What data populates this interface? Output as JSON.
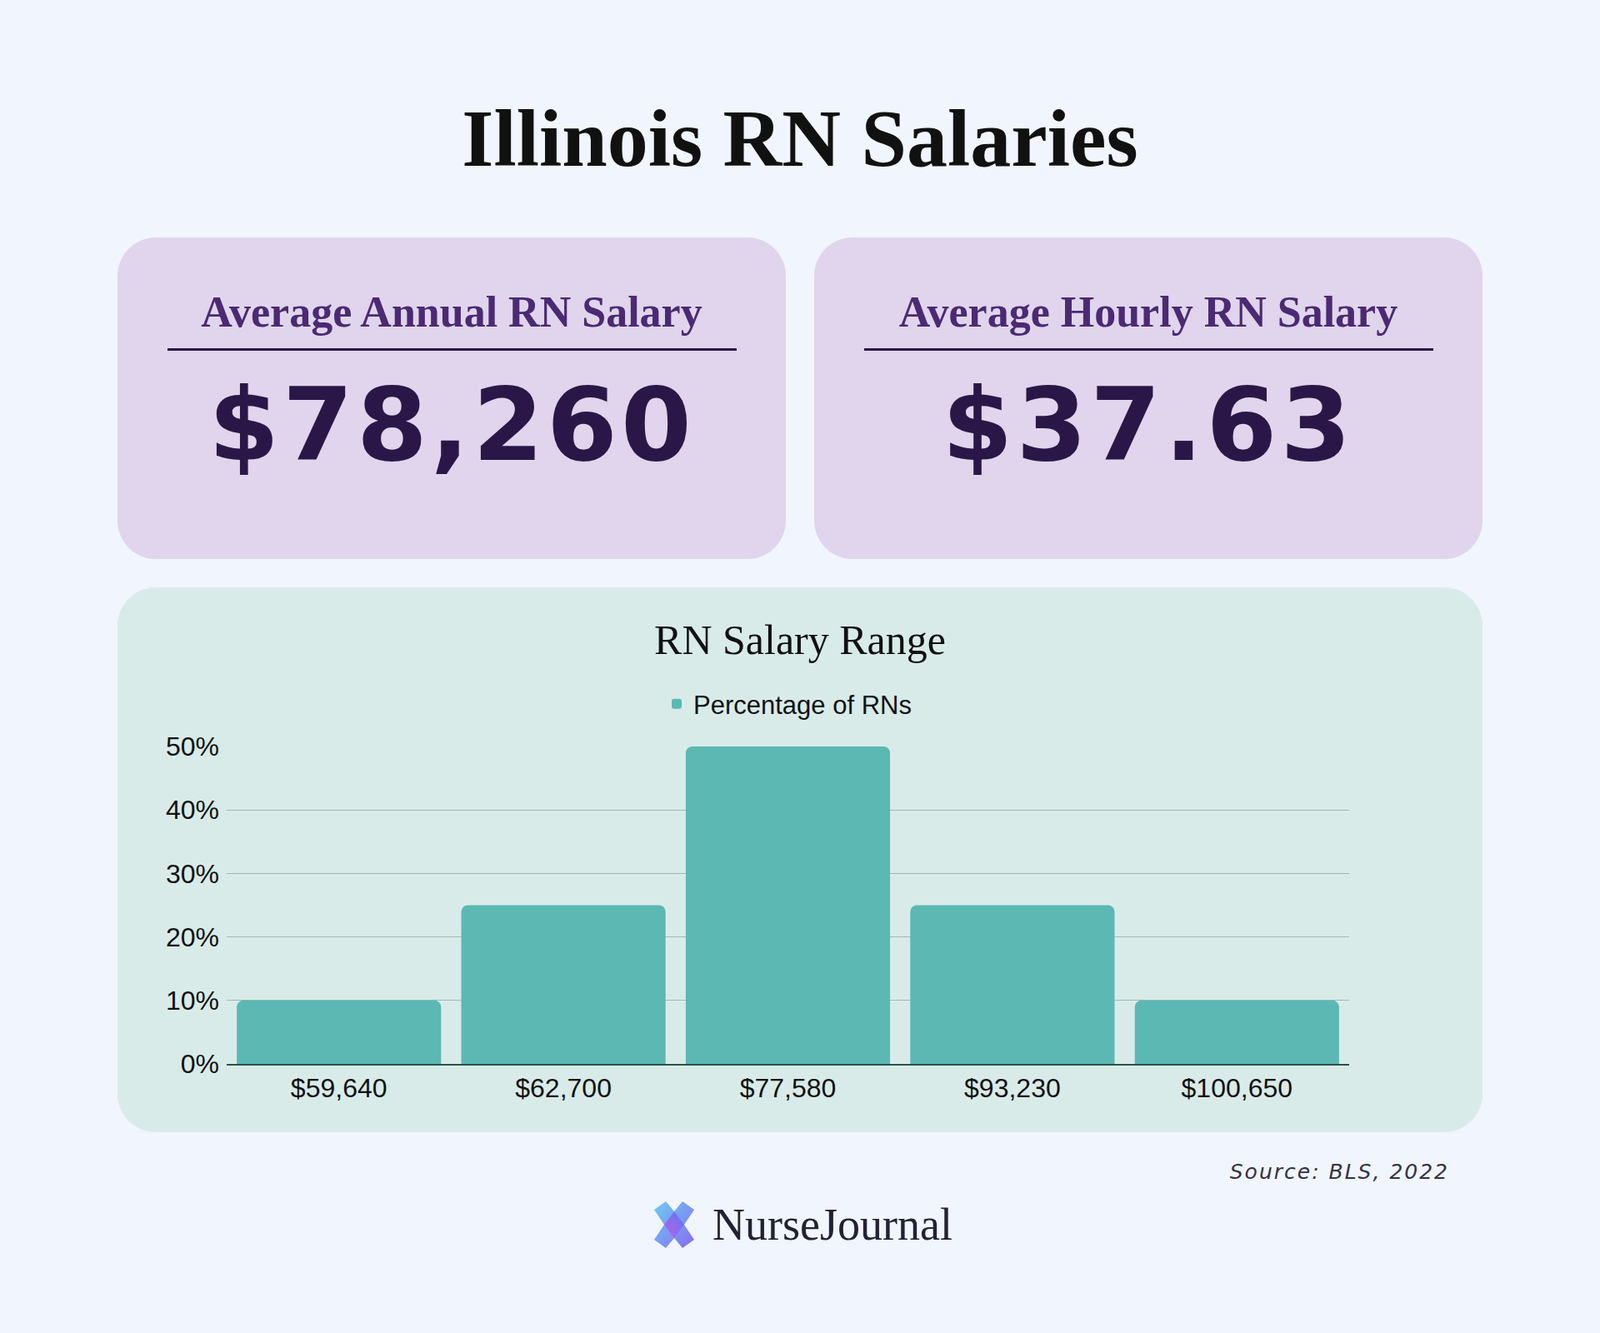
{
  "title": "Illinois RN Salaries",
  "cards": [
    {
      "label": "Average Annual RN Salary",
      "value": "$78,260"
    },
    {
      "label": "Average Hourly RN Salary",
      "value": "$37.63"
    }
  ],
  "chart_data": {
    "type": "bar",
    "title": "RN Salary Range",
    "categories": [
      "$59,640",
      "$62,700",
      "$77,580",
      "$93,230",
      "$100,650"
    ],
    "series": [
      {
        "name": "Percentage of RNs",
        "color": "#5bb8b2",
        "values": [
          10,
          25,
          50,
          25,
          10
        ]
      }
    ],
    "ylim": [
      0,
      50
    ],
    "yticks": [
      {
        "value": 0,
        "label": "0%"
      },
      {
        "value": 10,
        "label": "10%"
      },
      {
        "value": 20,
        "label": "20%"
      },
      {
        "value": 30,
        "label": "30%"
      },
      {
        "value": 40,
        "label": "40%"
      },
      {
        "value": 50,
        "label": "50%"
      }
    ],
    "grid": true,
    "legend": "top"
  },
  "source": "Source: BLS, 2022",
  "brand": "NurseJournal"
}
